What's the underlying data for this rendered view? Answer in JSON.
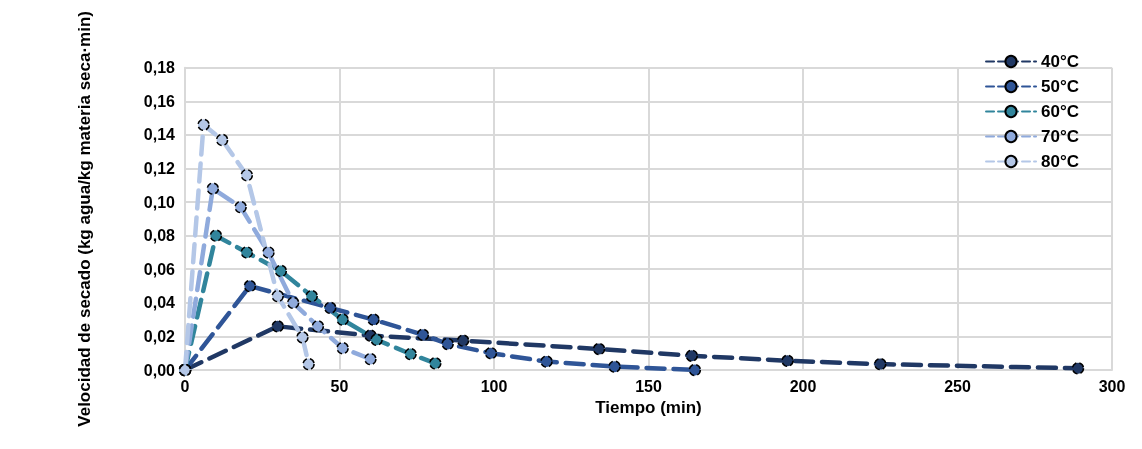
{
  "chart_data": {
    "type": "line",
    "xlabel": "Tiempo (min)",
    "ylabel": "Velocidad de secado (kg agua/kg materia seca·min)",
    "xlim": [
      0,
      300
    ],
    "xticks": [
      0,
      50,
      100,
      150,
      200,
      250,
      300
    ],
    "ylim": [
      0,
      0.18
    ],
    "yticks": [
      {
        "value": 0,
        "label": "0,00"
      },
      {
        "value": 0.02,
        "label": "0,02"
      },
      {
        "value": 0.04,
        "label": "0,04"
      },
      {
        "value": 0.06,
        "label": "0,06"
      },
      {
        "value": 0.08,
        "label": "0,08"
      },
      {
        "value": 0.1,
        "label": "0,10"
      },
      {
        "value": 0.12,
        "label": "0,12"
      },
      {
        "value": 0.14,
        "label": "0,14"
      },
      {
        "value": 0.16,
        "label": "0,16"
      },
      {
        "value": 0.18,
        "label": "0,18"
      }
    ],
    "grid": true,
    "legend": "top right",
    "marker": "circle",
    "line_style": "dashed",
    "series": [
      {
        "name": "40°C",
        "color": "#203864",
        "x": [
          0,
          30,
          60,
          90,
          134,
          164,
          195,
          225,
          289
        ],
        "values": [
          0,
          0.026,
          0.0205,
          0.0175,
          0.0125,
          0.0085,
          0.0055,
          0.0035,
          0.001
        ]
      },
      {
        "name": "50°C",
        "color": "#2f5597",
        "x": [
          0,
          21,
          47,
          61,
          77,
          85,
          99,
          117,
          139,
          165
        ],
        "values": [
          0,
          0.05,
          0.037,
          0.03,
          0.021,
          0.0155,
          0.01,
          0.005,
          0.002,
          0
        ]
      },
      {
        "name": "60°C",
        "color": "#31859c",
        "x": [
          0,
          10,
          20,
          31,
          41,
          51,
          62,
          73,
          81
        ],
        "values": [
          0,
          0.08,
          0.07,
          0.059,
          0.044,
          0.03,
          0.018,
          0.0095,
          0.004
        ]
      },
      {
        "name": "70°C",
        "color": "#8faadc",
        "x": [
          0,
          9,
          18,
          27,
          35,
          43,
          51,
          60
        ],
        "values": [
          0,
          0.108,
          0.097,
          0.07,
          0.04,
          0.026,
          0.013,
          0.0065
        ]
      },
      {
        "name": "80°C",
        "color": "#b4c7e7",
        "x": [
          0,
          6,
          12,
          20,
          30,
          38,
          40
        ],
        "values": [
          0,
          0.146,
          0.137,
          0.116,
          0.044,
          0.0195,
          0.0035
        ]
      }
    ]
  }
}
